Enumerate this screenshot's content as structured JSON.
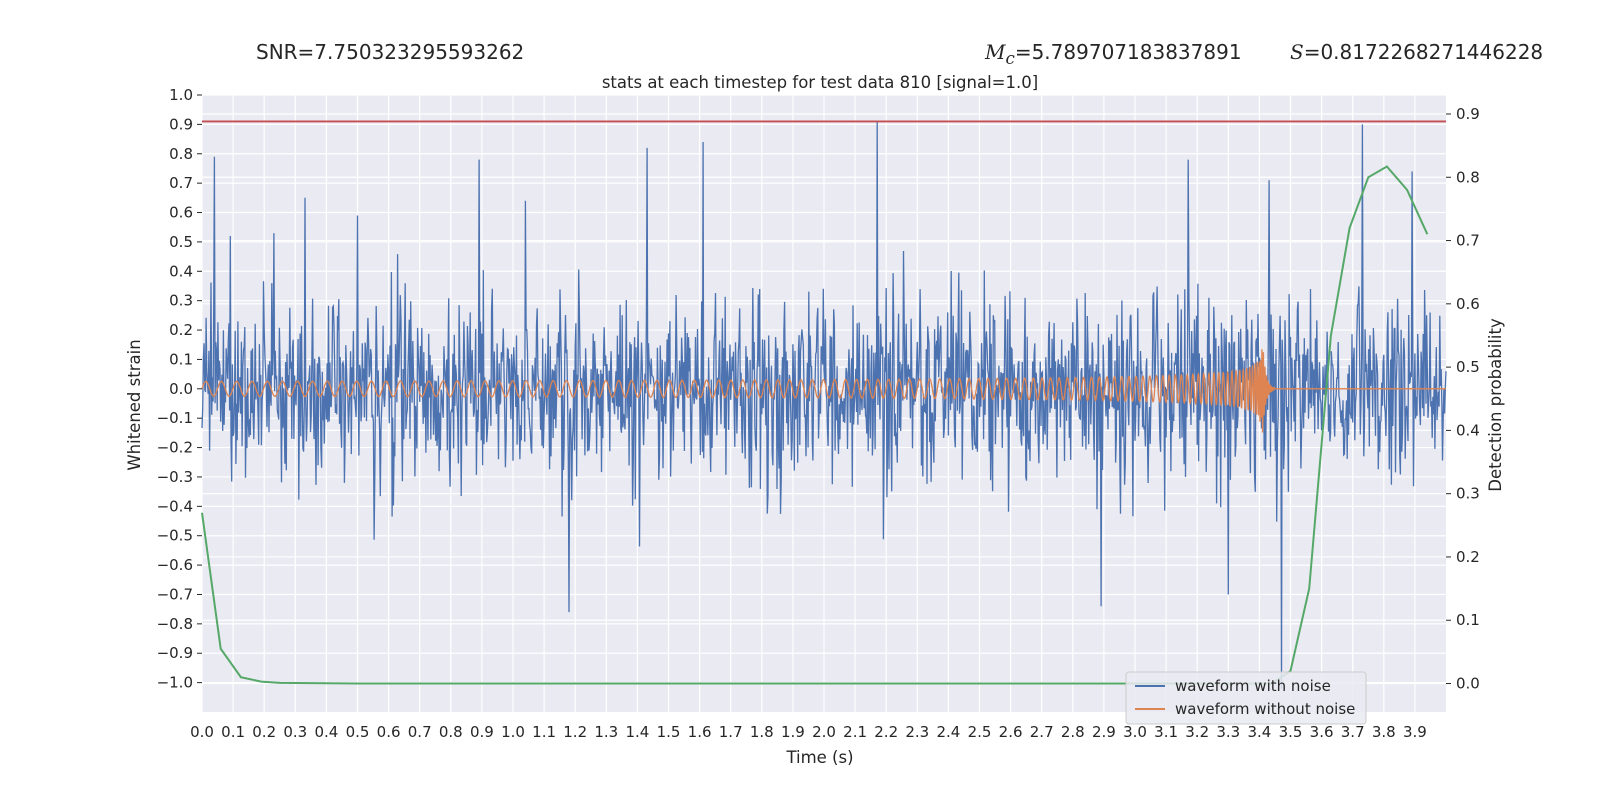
{
  "header": {
    "snr_text": "SNR=7.750323295593262",
    "mc_symbol": "M",
    "mc_sub": "c",
    "mc_value": "=5.789707183837891",
    "s_symbol": "S",
    "s_value": "=0.8172268271446228"
  },
  "chart_data": {
    "type": "line",
    "title": "stats at each timestep for test data 810 [signal=1.0]",
    "xlabel": "Time (s)",
    "ylabel": "Whitened strain",
    "ylabel_right": "Detection probability",
    "xlim": [
      0.0,
      4.0
    ],
    "ylim": [
      -1.1,
      1.0
    ],
    "ylim_right": [
      -0.045,
      0.93
    ],
    "x_ticks": [
      "0.0",
      "0.1",
      "0.2",
      "0.3",
      "0.4",
      "0.5",
      "0.6",
      "0.7",
      "0.8",
      "0.9",
      "1.0",
      "1.1",
      "1.2",
      "1.3",
      "1.4",
      "1.5",
      "1.6",
      "1.7",
      "1.8",
      "1.9",
      "2.0",
      "2.1",
      "2.2",
      "2.3",
      "2.4",
      "2.5",
      "2.6",
      "2.7",
      "2.8",
      "2.9",
      "3.0",
      "3.1",
      "3.2",
      "3.3",
      "3.4",
      "3.5",
      "3.6",
      "3.7",
      "3.8",
      "3.9"
    ],
    "y_ticks": [
      "1.0",
      "0.9",
      "0.8",
      "0.7",
      "0.6",
      "0.5",
      "0.4",
      "0.3",
      "0.2",
      "0.1",
      "0.0",
      "−0.1",
      "−0.2",
      "−0.3",
      "−0.4",
      "−0.5",
      "−0.6",
      "−0.7",
      "−0.8",
      "−0.9",
      "−1.0"
    ],
    "y_ticks_right": [
      "0.9",
      "0.8",
      "0.7",
      "0.6",
      "0.5",
      "0.4",
      "0.3",
      "0.2",
      "0.1",
      "0.0"
    ],
    "grid": true,
    "legend_position": "lower-right",
    "threshold": {
      "value": 0.91,
      "axis": "left",
      "color": "#c44e52"
    },
    "colors": {
      "background": "#eaeaf2",
      "grid": "#ffffff",
      "noisy": "#4c72b0",
      "clean": "#dd8452",
      "probability": "#55a868"
    },
    "series": [
      {
        "name": "waveform with noise",
        "axis": "left",
        "kind": "noise",
        "spikes": [
          {
            "x": 0.04,
            "y": 0.79
          },
          {
            "x": 0.09,
            "y": 0.52
          },
          {
            "x": 0.23,
            "y": 0.53
          },
          {
            "x": 0.33,
            "y": 0.65
          },
          {
            "x": 0.5,
            "y": 0.59
          },
          {
            "x": 0.89,
            "y": 0.78
          },
          {
            "x": 1.04,
            "y": 0.64
          },
          {
            "x": 1.43,
            "y": 0.82
          },
          {
            "x": 1.61,
            "y": 0.84
          },
          {
            "x": 2.17,
            "y": 0.91
          },
          {
            "x": 3.17,
            "y": 0.78
          },
          {
            "x": 3.43,
            "y": 0.71
          },
          {
            "x": 3.73,
            "y": 0.9
          },
          {
            "x": 3.89,
            "y": 0.74
          },
          {
            "x": 1.18,
            "y": -0.76
          },
          {
            "x": 3.47,
            "y": -1.02
          },
          {
            "x": 2.89,
            "y": -0.74
          },
          {
            "x": 3.3,
            "y": -0.7
          }
        ]
      },
      {
        "name": "waveform without noise",
        "axis": "left",
        "kind": "chirp",
        "start_amplitude": 0.025,
        "peak_amplitude": 0.17,
        "merger_time": 3.41,
        "ringdown_end": 3.45
      },
      {
        "axis": "right",
        "kind": "probability",
        "x": [
          0.0,
          0.06,
          0.125,
          0.19,
          0.25,
          0.5,
          1.0,
          2.0,
          3.0,
          3.25,
          3.38,
          3.44,
          3.5,
          3.56,
          3.63,
          3.69,
          3.75,
          3.81,
          3.875,
          3.94
        ],
        "y": [
          0.27,
          0.055,
          0.01,
          0.003,
          0.001,
          0.0,
          0.0,
          0.0,
          0.0,
          0.0,
          0.0,
          0.0,
          0.02,
          0.15,
          0.55,
          0.72,
          0.8,
          0.817,
          0.78,
          0.71
        ]
      }
    ]
  }
}
